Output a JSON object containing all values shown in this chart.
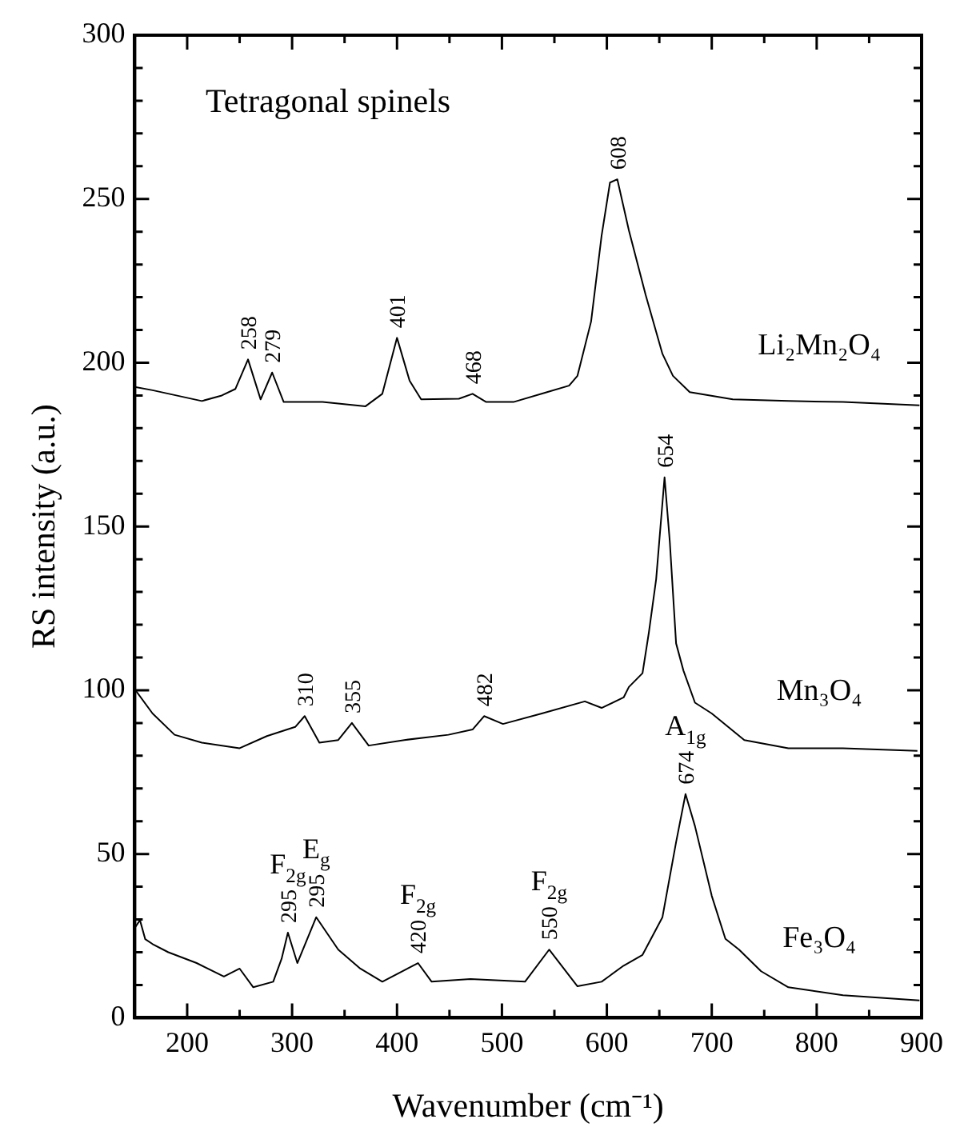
{
  "chart_data": {
    "type": "line",
    "xlabel": "Wavenumber (cm⁻¹)",
    "ylabel": "RS intensity (a.u.)",
    "xlim": [
      150,
      900
    ],
    "xticks": [
      200,
      {
        "value": 250,
        "label": null
      },
      300,
      {
        "value": 350,
        "label": null
      },
      400,
      {
        "value": 450,
        "label": null
      },
      500,
      {
        "value": 550,
        "label": null
      },
      600,
      {
        "value": 650,
        "label": null
      },
      700,
      {
        "value": 750,
        "label": null
      },
      800,
      {
        "value": 850,
        "label": null
      },
      900
    ],
    "ylim": [
      0,
      300
    ],
    "yticks": [
      0,
      {
        "value": 10,
        "label": null
      },
      {
        "value": 20,
        "label": null
      },
      {
        "value": 30,
        "label": null
      },
      {
        "value": 40,
        "label": null
      },
      50,
      {
        "value": 60,
        "label": null
      },
      {
        "value": 70,
        "label": null
      },
      {
        "value": 80,
        "label": null
      },
      {
        "value": 90,
        "label": null
      },
      100,
      {
        "value": 110,
        "label": null
      },
      {
        "value": 120,
        "label": null
      },
      {
        "value": 130,
        "label": null
      },
      {
        "value": 140,
        "label": null
      },
      150,
      {
        "value": 160,
        "label": null
      },
      {
        "value": 170,
        "label": null
      },
      {
        "value": 180,
        "label": null
      },
      {
        "value": 190,
        "label": null
      },
      200,
      {
        "value": 210,
        "label": null
      },
      {
        "value": 220,
        "label": null
      },
      {
        "value": 230,
        "label": null
      },
      {
        "value": 240,
        "label": null
      },
      250,
      {
        "value": 260,
        "label": null
      },
      {
        "value": 270,
        "label": null
      },
      {
        "value": 280,
        "label": null
      },
      {
        "value": 290,
        "label": null
      },
      300
    ],
    "grid": false,
    "legend": "right",
    "marker": "none",
    "line_style": "solid",
    "series": [
      {
        "name": "Li₂Mn₂O₄",
        "color": "#000000",
        "x": [
          150,
          167,
          214,
          233,
          246,
          258,
          270,
          281,
          292,
          329,
          370,
          386,
          400,
          412,
          423,
          459,
          472,
          485,
          511,
          543,
          564,
          572,
          585,
          595,
          603,
          610,
          621,
          637,
          653,
          663,
          679,
          720,
          773,
          825,
          898
        ],
        "values": [
          192.6,
          191.6,
          188.3,
          190,
          192,
          201,
          188.8,
          197,
          188,
          188,
          186.7,
          190.5,
          207.6,
          194.5,
          188.8,
          189,
          190.5,
          188,
          188,
          191,
          193,
          196,
          212.6,
          238.8,
          255,
          256,
          240.4,
          220.7,
          202.7,
          196,
          191,
          188.8,
          188.3,
          188,
          187
        ]
      },
      {
        "name": "Mn₃O₄",
        "color": "#000000",
        "x": [
          150,
          167,
          188,
          214,
          250,
          276,
          303,
          312,
          326,
          344,
          357,
          373,
          407,
          449,
          472,
          483,
          501,
          538,
          579,
          595,
          616,
          621,
          634,
          640,
          647,
          655,
          660,
          666,
          673,
          684,
          700,
          731,
          773,
          825,
          896
        ],
        "values": [
          100.3,
          92.9,
          86.4,
          84,
          82.3,
          86,
          88.8,
          92.1,
          84,
          84.8,
          90,
          83.1,
          84.8,
          86.4,
          88,
          92.1,
          89.7,
          92.9,
          96.6,
          94.6,
          97.8,
          101,
          105.2,
          117.5,
          133.9,
          165,
          145.4,
          114.3,
          106,
          96.2,
          92.9,
          84.8,
          82.3,
          82.3,
          81.5
        ]
      },
      {
        "name": "Fe₃O₄",
        "color": "#000000",
        "x": [
          150,
          155,
          160,
          167,
          182,
          209,
          235,
          250,
          263,
          282,
          290,
          296,
          305,
          323,
          344,
          365,
          386,
          420,
          433,
          470,
          522,
          545,
          572,
          595,
          616,
          634,
          653,
          666,
          675,
          684,
          700,
          713,
          726,
          747,
          773,
          825,
          898
        ],
        "values": [
          27.4,
          29.8,
          24,
          22.5,
          20,
          16.7,
          12.6,
          15,
          9.3,
          11,
          18,
          26,
          16.7,
          30.7,
          20.8,
          15,
          11,
          16.7,
          11,
          11.8,
          11,
          20.8,
          9.6,
          11,
          15.9,
          19.2,
          30.7,
          53.6,
          68.3,
          58.5,
          37.2,
          24.1,
          20.8,
          14.2,
          9.3,
          6.9,
          5.3
        ]
      }
    ],
    "annotations": [
      "Tetragonal spinels",
      {
        "text": "258",
        "x": 258,
        "y": 201
      },
      {
        "text": "279",
        "x": 281,
        "y": 197
      },
      {
        "text": "401",
        "x": 400,
        "y": 207.6
      },
      {
        "text": "468",
        "x": 472,
        "y": 190.5
      },
      {
        "text": "608",
        "x": 610,
        "y": 256
      },
      {
        "text": "654",
        "x": 655,
        "y": 165
      },
      {
        "text": "310",
        "x": 312,
        "y": 92.1
      },
      {
        "text": "355",
        "x": 357,
        "y": 90
      },
      {
        "text": "482",
        "x": 483,
        "y": 92.1
      },
      {
        "text": "674",
        "x": 675,
        "y": 68.3
      },
      {
        "text": "295",
        "x": 296,
        "y": 26
      },
      {
        "text": "295",
        "x": 323,
        "y": 30.7
      },
      {
        "text": "420",
        "x": 420,
        "y": 16.7
      },
      {
        "text": "550",
        "x": 545,
        "y": 20.8
      },
      {
        "text": "F$_{2g}$",
        "x": 296,
        "y": 26
      },
      {
        "text": "E$_{g}$",
        "x": 323,
        "y": 30.7
      },
      {
        "text": "F$_{2g}$",
        "x": 420,
        "y": 16.7
      },
      {
        "text": "F$_{2g}$",
        "x": 545,
        "y": 20.8
      },
      {
        "text": "A$_{1g}$",
        "x": 675,
        "y": 68.3
      }
    ]
  }
}
